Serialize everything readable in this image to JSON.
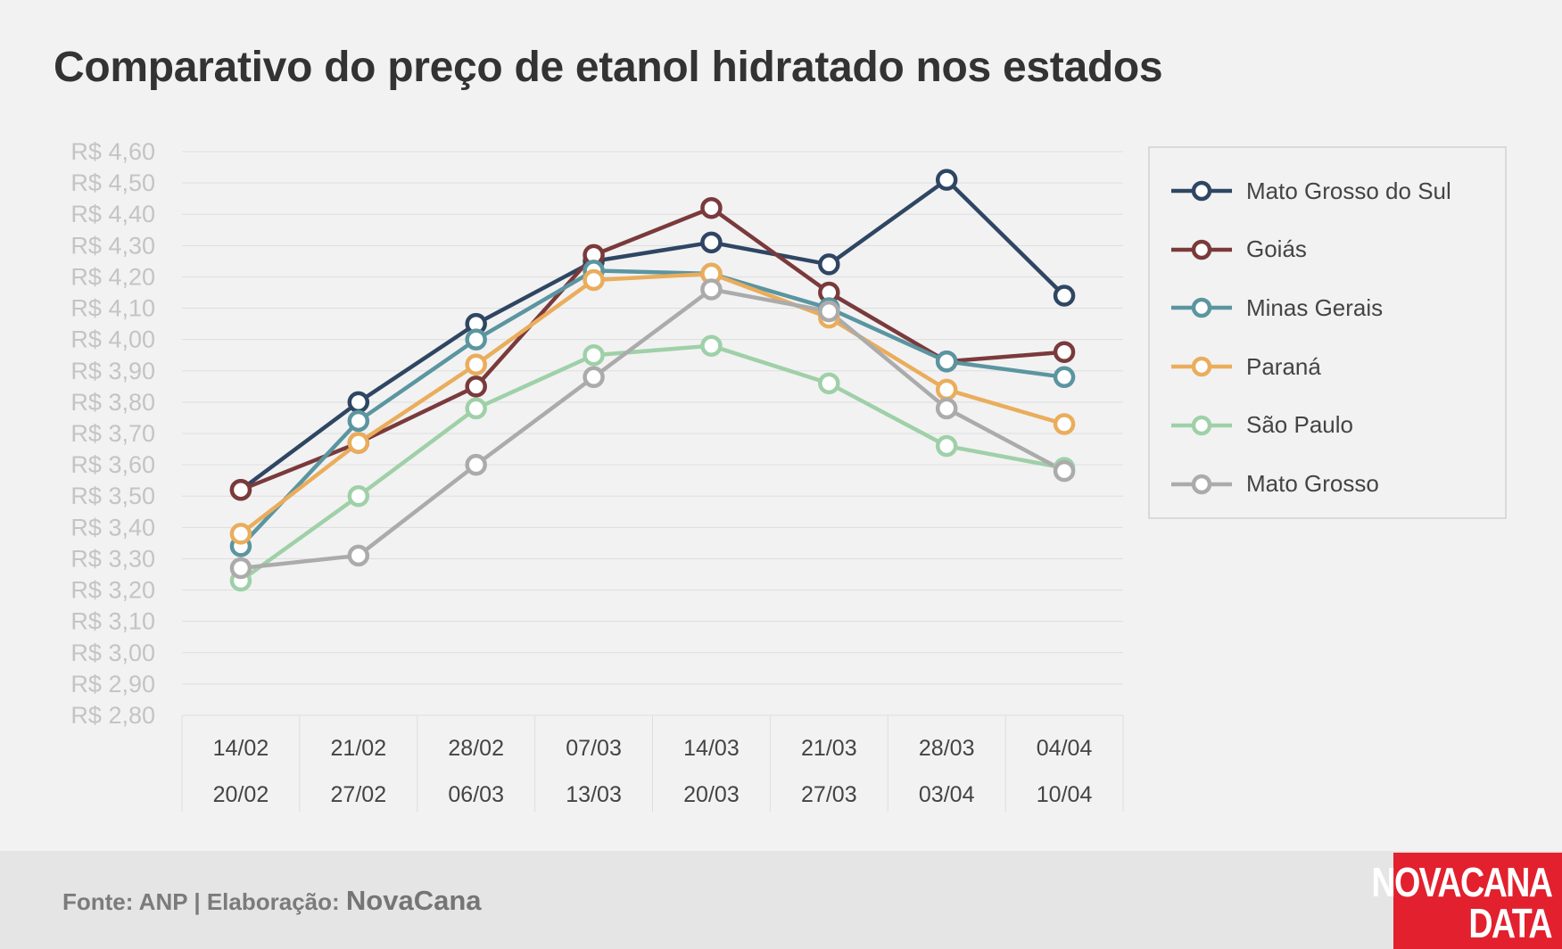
{
  "title": "Comparativo do preço de etanol hidratado nos estados",
  "chart_data": {
    "type": "line",
    "title": "Comparativo do preço de etanol hidratado nos estados",
    "xlabel": "",
    "ylabel": "",
    "ylim": [
      2.8,
      4.6
    ],
    "y_ticks": [
      "R$ 4,60",
      "R$ 4,50",
      "R$ 4,40",
      "R$ 4,30",
      "R$ 4,20",
      "R$ 4,10",
      "R$ 4,00",
      "R$ 3,90",
      "R$ 3,80",
      "R$ 3,70",
      "R$ 3,60",
      "R$ 3,50",
      "R$ 3,40",
      "R$ 3,30",
      "R$ 3,20",
      "R$ 3,10",
      "R$ 3,00",
      "R$ 2,90",
      "R$ 2,80"
    ],
    "categories": [
      {
        "start": "14/02",
        "end": "20/02"
      },
      {
        "start": "21/02",
        "end": "27/02"
      },
      {
        "start": "28/02",
        "end": "06/03"
      },
      {
        "start": "07/03",
        "end": "13/03"
      },
      {
        "start": "14/03",
        "end": "20/03"
      },
      {
        "start": "21/03",
        "end": "27/03"
      },
      {
        "start": "28/03",
        "end": "03/04"
      },
      {
        "start": "04/04",
        "end": "10/04"
      }
    ],
    "grid": true,
    "legend_position": "right",
    "series": [
      {
        "name": "Mato Grosso do Sul",
        "color": "#2f4663",
        "values": [
          3.52,
          3.8,
          4.05,
          4.25,
          4.31,
          4.24,
          4.51,
          4.14
        ]
      },
      {
        "name": "Goiás",
        "color": "#7a3a3b",
        "values": [
          3.52,
          3.67,
          3.85,
          4.27,
          4.42,
          4.15,
          3.93,
          3.96
        ]
      },
      {
        "name": "Minas Gerais",
        "color": "#5b95a0",
        "values": [
          3.34,
          3.74,
          4.0,
          4.22,
          4.21,
          4.1,
          3.93,
          3.88
        ]
      },
      {
        "name": "Paraná",
        "color": "#eaad5c",
        "values": [
          3.38,
          3.67,
          3.92,
          4.19,
          4.21,
          4.07,
          3.84,
          3.73
        ]
      },
      {
        "name": "São Paulo",
        "color": "#9fd0a8",
        "values": [
          3.23,
          3.5,
          3.78,
          3.95,
          3.98,
          3.86,
          3.66,
          3.59
        ]
      },
      {
        "name": "Mato Grosso",
        "color": "#ababab",
        "values": [
          3.27,
          3.31,
          3.6,
          3.88,
          4.16,
          4.09,
          3.78,
          3.58
        ]
      }
    ]
  },
  "footer": {
    "source_label": "Fonte: ANP | Elaboração: ",
    "brand": "NovaCana"
  },
  "logo": {
    "line1": "NOVACANA",
    "line2": "DATA"
  }
}
